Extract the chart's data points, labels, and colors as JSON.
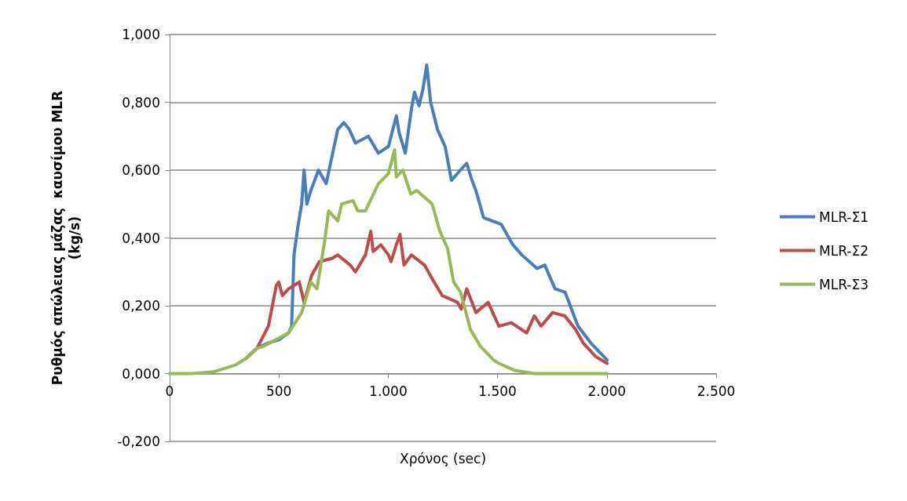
{
  "chart_data": {
    "type": "line",
    "xlabel": "Χρόνος (sec)",
    "ylabel": "Ρυθμός απώλειας μάζας  καυσίμου MLR\n(kg/s)",
    "xlim": [
      0,
      2500
    ],
    "xticks": [
      0,
      500,
      {
        "value": 1000,
        "label": "1.000"
      },
      {
        "value": 1500,
        "label": "1.500"
      },
      {
        "value": 2000,
        "label": "2.000"
      },
      {
        "value": 2500,
        "label": "2.500"
      }
    ],
    "ylim": [
      -0.2,
      1.0
    ],
    "yticks": [
      {
        "value": -0.2,
        "label": "-0,200"
      },
      {
        "value": 0,
        "label": "0,000"
      },
      {
        "value": 0.2,
        "label": "0,200"
      },
      {
        "value": 0.4,
        "label": "0,400"
      },
      {
        "value": 0.6,
        "label": "0,600"
      },
      {
        "value": 0.8,
        "label": "0,800"
      },
      {
        "value": 1.0,
        "label": "1,000"
      }
    ],
    "grid": "y",
    "legend": "right",
    "marker": "none",
    "line_style": "solid",
    "series": [
      {
        "name": "MLR-Σ1",
        "color": "#4a7ebb",
        "x": [
          350,
          400,
          450,
          500,
          544,
          558,
          569,
          586,
          604,
          615,
          628,
          646,
          681,
          716,
          769,
          797,
          822,
          850,
          909,
          955,
          1001,
          1037,
          1050,
          1078,
          1106,
          1120,
          1141,
          1159,
          1176,
          1194,
          1225,
          1260,
          1289,
          1330,
          1359,
          1383,
          1401,
          1436,
          1517,
          1570,
          1611,
          1681,
          1716,
          1763,
          1809,
          1868,
          1927,
          2001
        ],
        "values": [
          0.045,
          0.075,
          0.09,
          0.1,
          0.12,
          0.14,
          0.35,
          0.43,
          0.5,
          0.6,
          0.5,
          0.54,
          0.6,
          0.56,
          0.72,
          0.74,
          0.72,
          0.68,
          0.7,
          0.65,
          0.67,
          0.76,
          0.71,
          0.65,
          0.78,
          0.83,
          0.79,
          0.84,
          0.91,
          0.8,
          0.72,
          0.67,
          0.57,
          0.6,
          0.62,
          0.57,
          0.54,
          0.46,
          0.44,
          0.38,
          0.35,
          0.31,
          0.32,
          0.25,
          0.24,
          0.14,
          0.09,
          0.04
        ]
      },
      {
        "name": "MLR-Σ2",
        "color": "#be4b48",
        "x": [
          350,
          400,
          452,
          488,
          499,
          516,
          544,
          593,
          615,
          650,
          685,
          744,
          769,
          826,
          850,
          896,
          920,
          931,
          966,
          1001,
          1013,
          1037,
          1054,
          1072,
          1106,
          1166,
          1201,
          1247,
          1317,
          1334,
          1359,
          1401,
          1457,
          1506,
          1563,
          1633,
          1668,
          1699,
          1752,
          1808,
          1857,
          1892,
          1949,
          2001
        ],
        "values": [
          0.045,
          0.075,
          0.14,
          0.26,
          0.27,
          0.23,
          0.25,
          0.27,
          0.21,
          0.29,
          0.33,
          0.34,
          0.35,
          0.32,
          0.3,
          0.35,
          0.42,
          0.36,
          0.38,
          0.35,
          0.33,
          0.38,
          0.41,
          0.32,
          0.35,
          0.32,
          0.28,
          0.23,
          0.21,
          0.19,
          0.25,
          0.18,
          0.21,
          0.14,
          0.15,
          0.12,
          0.17,
          0.14,
          0.18,
          0.17,
          0.13,
          0.09,
          0.05,
          0.03
        ]
      },
      {
        "name": "MLR-Σ3",
        "color": "#98b954",
        "x": [
          0,
          100,
          200,
          300,
          350,
          400,
          428,
          544,
          604,
          646,
          674,
          709,
          727,
          769,
          787,
          839,
          860,
          896,
          955,
          1001,
          1029,
          1037,
          1067,
          1103,
          1131,
          1201,
          1236,
          1271,
          1299,
          1331,
          1376,
          1422,
          1482,
          1506,
          1576,
          1668,
          2001
        ],
        "values": [
          0,
          0,
          0.005,
          0.025,
          0.045,
          0.075,
          0.08,
          0.12,
          0.18,
          0.27,
          0.25,
          0.39,
          0.48,
          0.45,
          0.5,
          0.51,
          0.48,
          0.48,
          0.56,
          0.59,
          0.66,
          0.58,
          0.6,
          0.53,
          0.54,
          0.5,
          0.42,
          0.37,
          0.27,
          0.24,
          0.13,
          0.08,
          0.04,
          0.03,
          0.01,
          0,
          0
        ]
      }
    ]
  }
}
